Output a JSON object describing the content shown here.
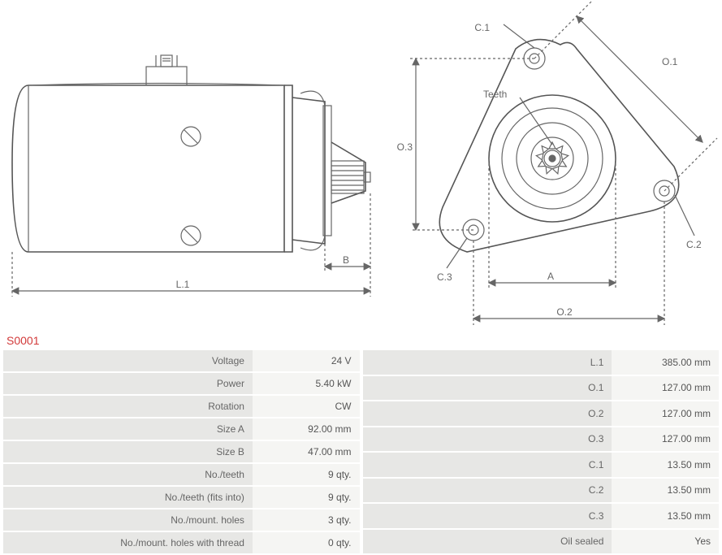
{
  "part_code": "S0001",
  "diagram_labels": {
    "L1": "L.1",
    "B": "B",
    "A": "A",
    "O1": "O.1",
    "O2": "O.2",
    "O3": "O.3",
    "C1": "C.1",
    "C2": "C.2",
    "C3": "C.3",
    "Teeth": "Teeth"
  },
  "specs_left": [
    {
      "label": "Voltage",
      "value": "24 V"
    },
    {
      "label": "Power",
      "value": "5.40 kW"
    },
    {
      "label": "Rotation",
      "value": "CW"
    },
    {
      "label": "Size A",
      "value": "92.00 mm"
    },
    {
      "label": "Size B",
      "value": "47.00 mm"
    },
    {
      "label": "No./teeth",
      "value": "9 qty."
    },
    {
      "label": "No./teeth (fits into)",
      "value": "9 qty."
    },
    {
      "label": "No./mount. holes",
      "value": "3 qty."
    },
    {
      "label": "No./mount. holes with thread",
      "value": "0 qty."
    }
  ],
  "specs_right": [
    {
      "label": "L.1",
      "value": "385.00 mm"
    },
    {
      "label": "O.1",
      "value": "127.00 mm"
    },
    {
      "label": "O.2",
      "value": "127.00 mm"
    },
    {
      "label": "O.3",
      "value": "127.00 mm"
    },
    {
      "label": "C.1",
      "value": "13.50 mm"
    },
    {
      "label": "C.2",
      "value": "13.50 mm"
    },
    {
      "label": "C.3",
      "value": "13.50 mm"
    },
    {
      "label": "Oil sealed",
      "value": "Yes"
    }
  ],
  "colors": {
    "line": "#666666",
    "part_code": "#d23a3a",
    "label_bg": "#e7e7e5",
    "value_bg": "#f5f5f3"
  }
}
